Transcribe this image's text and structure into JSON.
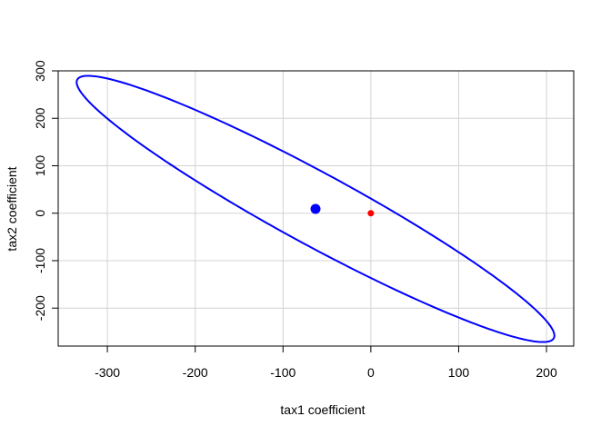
{
  "chart_data": {
    "type": "scatter",
    "title": "",
    "xlabel": "tax1 coefficient",
    "ylabel": "tax2 coefficient",
    "xlim": [
      -356,
      231
    ],
    "ylim": [
      -280,
      300
    ],
    "xticks": [
      -300,
      -200,
      -100,
      0,
      100,
      200
    ],
    "yticks": [
      -200,
      -100,
      0,
      100,
      200,
      300
    ],
    "grid": true,
    "ellipse": {
      "color": "#0000ff",
      "center": [
        -63,
        9
      ],
      "endpoints": [
        [
          -335,
          277
        ],
        [
          209,
          -258
        ]
      ],
      "tangent_points": [
        [
          -63,
          95
        ],
        [
          -63,
          -87
        ]
      ]
    },
    "points": [
      {
        "x": -63,
        "y": 9,
        "color": "#0000ff",
        "size": "large"
      },
      {
        "x": 0,
        "y": 0,
        "color": "#ff0000",
        "size": "small"
      }
    ]
  }
}
